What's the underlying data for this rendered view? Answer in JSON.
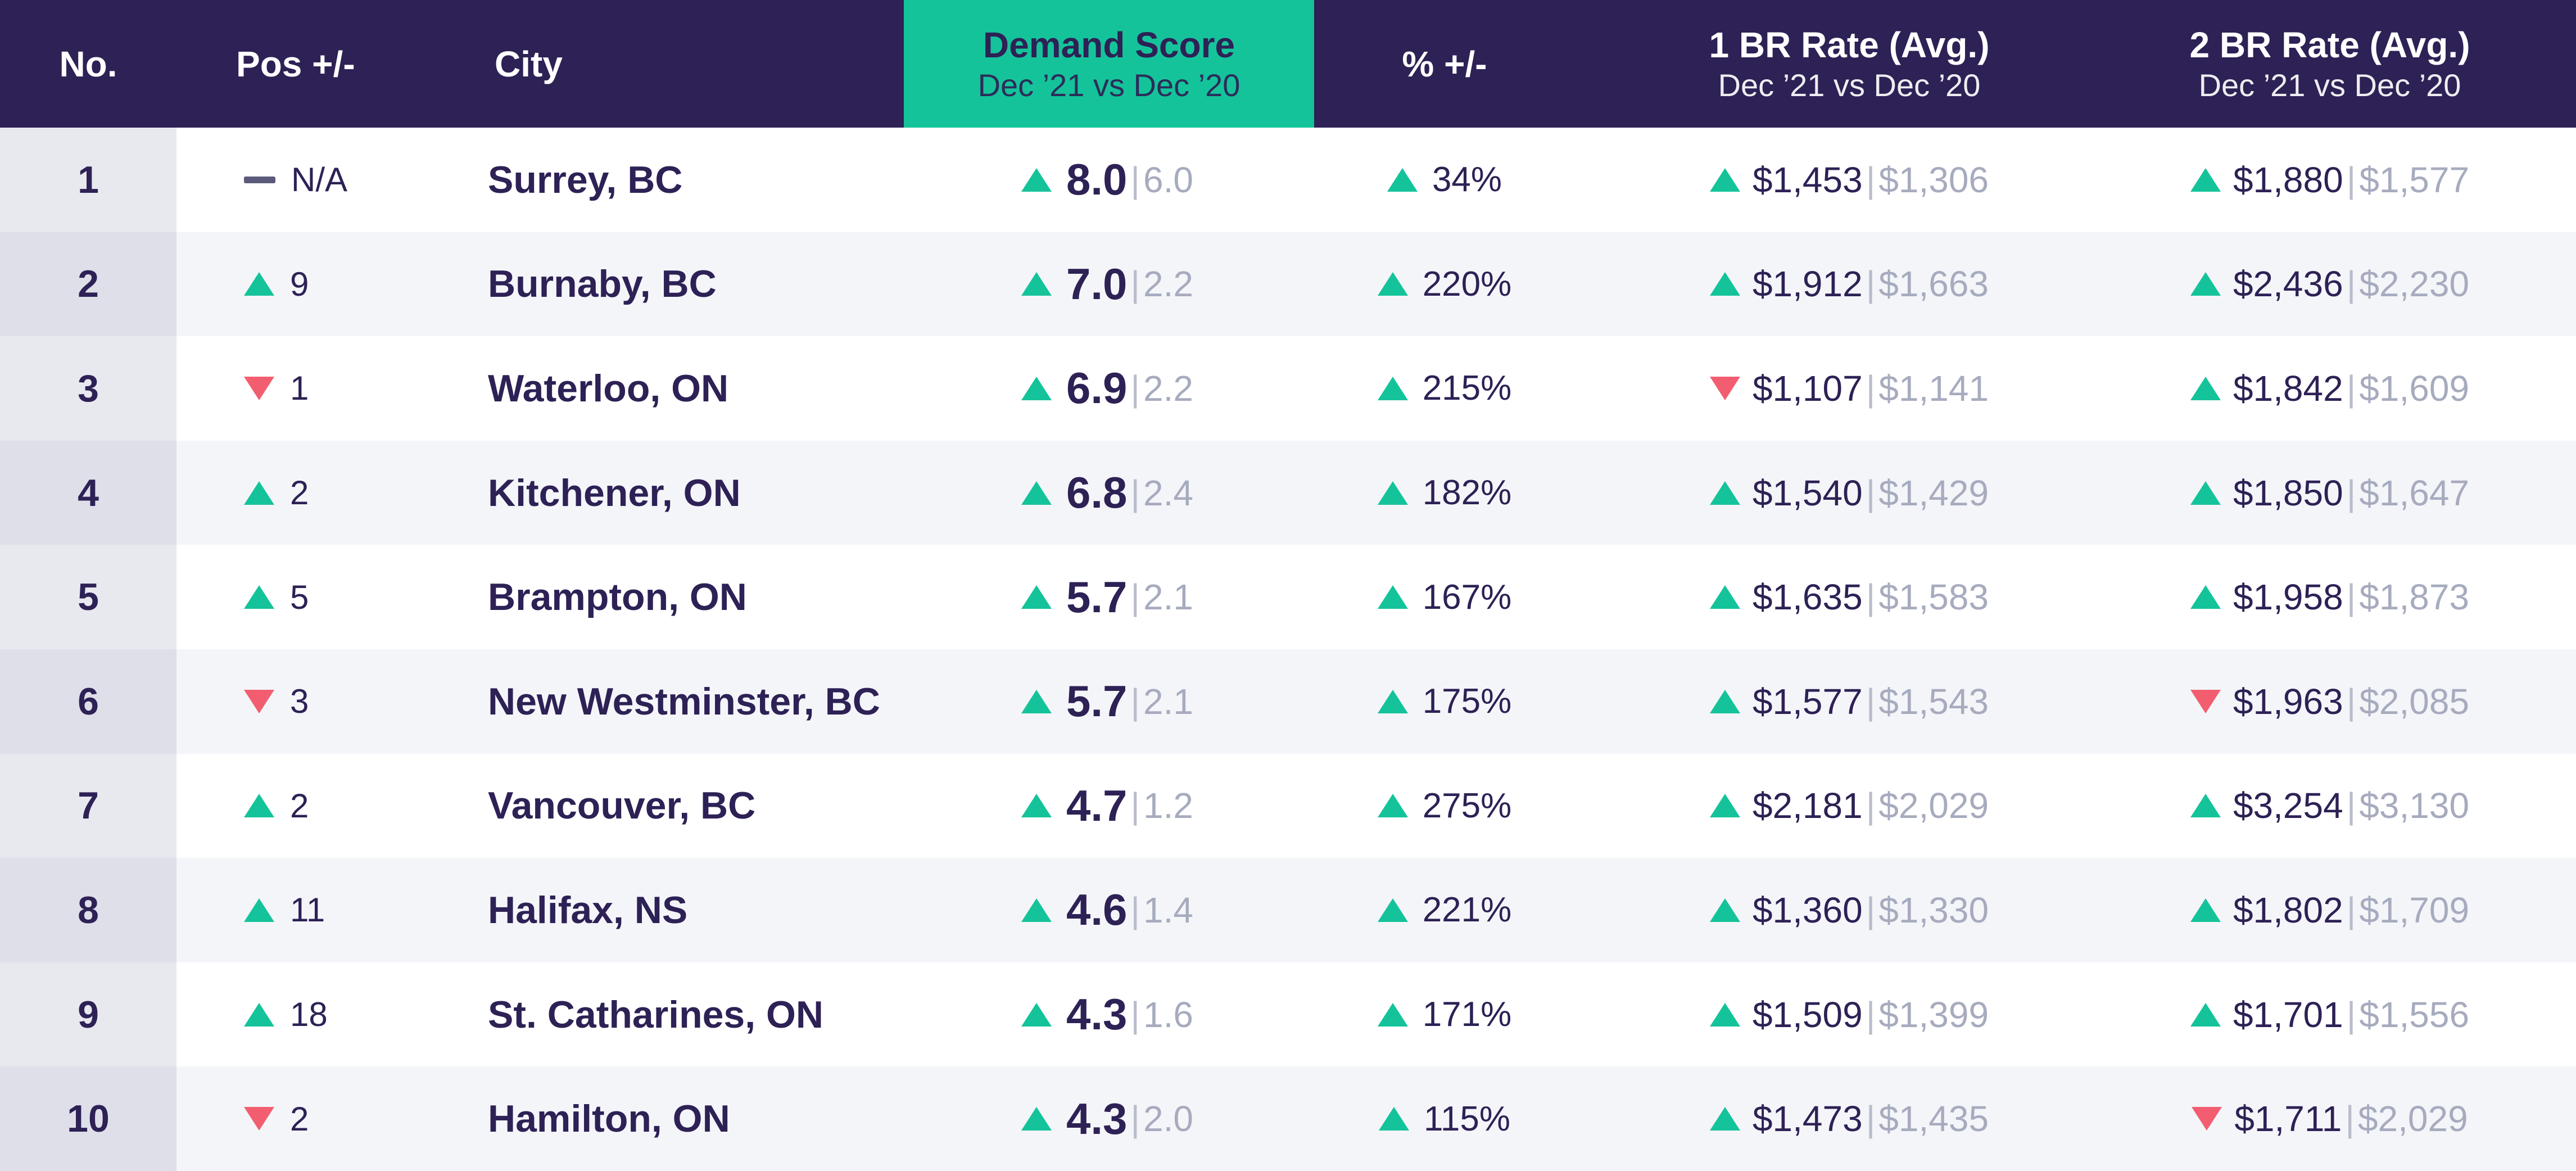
{
  "chart_data": {
    "type": "table",
    "columns": {
      "no": "No.",
      "pos": "Pos +/-",
      "city": "City",
      "score": {
        "title": "Demand Score",
        "subtitle": "Dec ’21 vs Dec ’20"
      },
      "pct": "% +/-",
      "rate1": {
        "title": "1 BR Rate (Avg.)",
        "subtitle": "Dec ’21 vs Dec ’20"
      },
      "rate2": {
        "title": "2 BR Rate (Avg.)",
        "subtitle": "Dec ’21 vs Dec ’20"
      }
    },
    "rows": [
      {
        "no": "1",
        "pos": {
          "dir": "none",
          "icon": "dash-icon",
          "value": "N/A"
        },
        "city": "Surrey, BC",
        "score": {
          "dir": "up",
          "current": "8.0",
          "previous": "6.0"
        },
        "pct": {
          "dir": "up",
          "value": "34%"
        },
        "rate1": {
          "dir": "up",
          "current": "$1,453",
          "previous": "$1,306"
        },
        "rate2": {
          "dir": "up",
          "current": "$1,880",
          "previous": "$1,577"
        }
      },
      {
        "no": "2",
        "pos": {
          "dir": "up",
          "icon": "triangle-up-icon",
          "value": "9"
        },
        "city": "Burnaby, BC",
        "score": {
          "dir": "up",
          "current": "7.0",
          "previous": "2.2"
        },
        "pct": {
          "dir": "up",
          "value": "220%"
        },
        "rate1": {
          "dir": "up",
          "current": "$1,912",
          "previous": "$1,663"
        },
        "rate2": {
          "dir": "up",
          "current": "$2,436",
          "previous": "$2,230"
        }
      },
      {
        "no": "3",
        "pos": {
          "dir": "down",
          "icon": "triangle-down-icon",
          "value": "1"
        },
        "city": "Waterloo, ON",
        "score": {
          "dir": "up",
          "current": "6.9",
          "previous": "2.2"
        },
        "pct": {
          "dir": "up",
          "value": "215%"
        },
        "rate1": {
          "dir": "down",
          "current": "$1,107",
          "previous": "$1,141"
        },
        "rate2": {
          "dir": "up",
          "current": "$1,842",
          "previous": "$1,609"
        }
      },
      {
        "no": "4",
        "pos": {
          "dir": "up",
          "icon": "triangle-up-icon",
          "value": "2"
        },
        "city": "Kitchener, ON",
        "score": {
          "dir": "up",
          "current": "6.8",
          "previous": "2.4"
        },
        "pct": {
          "dir": "up",
          "value": "182%"
        },
        "rate1": {
          "dir": "up",
          "current": "$1,540",
          "previous": "$1,429"
        },
        "rate2": {
          "dir": "up",
          "current": "$1,850",
          "previous": "$1,647"
        }
      },
      {
        "no": "5",
        "pos": {
          "dir": "up",
          "icon": "triangle-up-icon",
          "value": "5"
        },
        "city": "Brampton, ON",
        "score": {
          "dir": "up",
          "current": "5.7",
          "previous": "2.1"
        },
        "pct": {
          "dir": "up",
          "value": "167%"
        },
        "rate1": {
          "dir": "up",
          "current": "$1,635",
          "previous": "$1,583"
        },
        "rate2": {
          "dir": "up",
          "current": "$1,958",
          "previous": "$1,873"
        }
      },
      {
        "no": "6",
        "pos": {
          "dir": "down",
          "icon": "triangle-down-icon",
          "value": "3"
        },
        "city": "New Westminster, BC",
        "score": {
          "dir": "up",
          "current": "5.7",
          "previous": "2.1"
        },
        "pct": {
          "dir": "up",
          "value": "175%"
        },
        "rate1": {
          "dir": "up",
          "current": "$1,577",
          "previous": "$1,543"
        },
        "rate2": {
          "dir": "down",
          "current": "$1,963",
          "previous": "$2,085"
        }
      },
      {
        "no": "7",
        "pos": {
          "dir": "up",
          "icon": "triangle-up-icon",
          "value": "2"
        },
        "city": "Vancouver, BC",
        "score": {
          "dir": "up",
          "current": "4.7",
          "previous": "1.2"
        },
        "pct": {
          "dir": "up",
          "value": "275%"
        },
        "rate1": {
          "dir": "up",
          "current": "$2,181",
          "previous": "$2,029"
        },
        "rate2": {
          "dir": "up",
          "current": "$3,254",
          "previous": "$3,130"
        }
      },
      {
        "no": "8",
        "pos": {
          "dir": "up",
          "icon": "triangle-up-icon",
          "value": "11"
        },
        "city": "Halifax, NS",
        "score": {
          "dir": "up",
          "current": "4.6",
          "previous": "1.4"
        },
        "pct": {
          "dir": "up",
          "value": "221%"
        },
        "rate1": {
          "dir": "up",
          "current": "$1,360",
          "previous": "$1,330"
        },
        "rate2": {
          "dir": "up",
          "current": "$1,802",
          "previous": "$1,709"
        }
      },
      {
        "no": "9",
        "pos": {
          "dir": "up",
          "icon": "triangle-up-icon",
          "value": "18"
        },
        "city": "St. Catharines, ON",
        "score": {
          "dir": "up",
          "current": "4.3",
          "previous": "1.6"
        },
        "pct": {
          "dir": "up",
          "value": "171%"
        },
        "rate1": {
          "dir": "up",
          "current": "$1,509",
          "previous": "$1,399"
        },
        "rate2": {
          "dir": "up",
          "current": "$1,701",
          "previous": "$1,556"
        }
      },
      {
        "no": "10",
        "pos": {
          "dir": "down",
          "icon": "triangle-down-icon",
          "value": "2"
        },
        "city": "Hamilton, ON",
        "score": {
          "dir": "up",
          "current": "4.3",
          "previous": "2.0"
        },
        "pct": {
          "dir": "up",
          "value": "115%"
        },
        "rate1": {
          "dir": "up",
          "current": "$1,473",
          "previous": "$1,435"
        },
        "rate2": {
          "dir": "down",
          "current": "$1,711",
          "previous": "$2,029"
        }
      }
    ]
  },
  "colors": {
    "header_bg": "#2d2155",
    "accent_teal": "#15c39a",
    "up": "#15c39a",
    "down": "#f25e70",
    "text_dark": "#2d2155",
    "text_muted": "#a7abbe"
  }
}
